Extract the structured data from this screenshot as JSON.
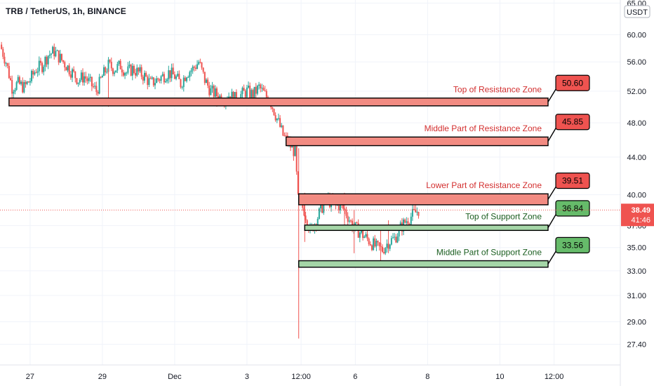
{
  "symbol": {
    "title": "TRB / TetherUS, 1h, BINANCE"
  },
  "price_axis": {
    "currency": "USDT",
    "current_price": "38.49",
    "countdown": "41:46"
  },
  "colors": {
    "resistance_fill": "#f28b82",
    "resistance_label": "#ef5350",
    "resistance_text": "#d32f2f",
    "support_fill": "#a5d6a7",
    "support_label": "#66bb6a",
    "support_text": "#1b5e20",
    "candle_up": "#26a69a",
    "candle_down": "#ef5350",
    "price_line": "#ef5350",
    "grid": "#f0f3fa"
  },
  "chart_data": {
    "type": "candlestick",
    "y_scale": "log",
    "ylim": [
      26.0,
      65.5
    ],
    "xlim": [
      -2,
      101
    ],
    "y_ticks": [
      "65.00",
      "60.00",
      "56.00",
      "52.00",
      "48.00",
      "44.00",
      "40.00",
      "37.00",
      "35.00",
      "33.00",
      "31.00",
      "29.00",
      "27.40"
    ],
    "y_tick_values": [
      65.0,
      60.0,
      56.0,
      52.0,
      48.0,
      44.0,
      40.0,
      37.0,
      35.0,
      33.0,
      31.0,
      29.0,
      27.4
    ],
    "x_ticks": [
      {
        "label": "27",
        "x": 3
      },
      {
        "label": "29",
        "x": 15
      },
      {
        "label": "Dec",
        "x": 27
      },
      {
        "label": "3",
        "x": 39
      },
      {
        "label": "12:00",
        "x": 48
      },
      {
        "label": "6",
        "x": 57
      },
      {
        "label": "8",
        "x": 69
      },
      {
        "label": "10",
        "x": 81
      },
      {
        "label": "12:00",
        "x": 90
      }
    ],
    "price_path": [
      [
        -2,
        58.5
      ],
      [
        -1,
        56.0
      ],
      [
        0,
        52.5
      ],
      [
        1,
        53.0
      ],
      [
        2,
        52.5
      ],
      [
        3,
        53.5
      ],
      [
        4,
        55.0
      ],
      [
        5,
        55.5
      ],
      [
        6,
        57.0
      ],
      [
        7,
        57.5
      ],
      [
        8,
        56.5
      ],
      [
        9,
        55.5
      ],
      [
        10,
        54.5
      ],
      [
        11,
        53.5
      ],
      [
        12,
        54.0
      ],
      [
        13,
        53.0
      ],
      [
        14,
        52.0
      ],
      [
        15,
        54.0
      ],
      [
        16,
        55.5
      ],
      [
        17,
        55.0
      ],
      [
        18,
        55.5
      ],
      [
        19,
        54.5
      ],
      [
        20,
        55.0
      ],
      [
        21,
        54.5
      ],
      [
        22,
        54.0
      ],
      [
        23,
        53.0
      ],
      [
        24,
        53.5
      ],
      [
        25,
        54.0
      ],
      [
        26,
        54.5
      ],
      [
        27,
        54.0
      ],
      [
        28,
        53.0
      ],
      [
        29,
        54.5
      ],
      [
        30,
        55.0
      ],
      [
        31,
        56.0
      ],
      [
        32,
        53.5
      ],
      [
        33,
        52.0
      ],
      [
        34,
        51.5
      ],
      [
        35,
        51.0
      ],
      [
        36,
        51.5
      ],
      [
        37,
        51.0
      ],
      [
        38,
        51.5
      ],
      [
        39,
        52.0
      ],
      [
        40,
        51.5
      ],
      [
        41,
        52.5
      ],
      [
        42,
        51.5
      ],
      [
        43,
        50.5
      ],
      [
        44,
        48.5
      ],
      [
        45,
        46.5
      ],
      [
        46,
        45.5
      ],
      [
        47,
        44.5
      ],
      [
        47.5,
        39.5
      ],
      [
        48.5,
        38.5
      ],
      [
        49.5,
        36.5
      ],
      [
        50.5,
        37.5
      ],
      [
        51.5,
        38.8
      ],
      [
        52.5,
        39.5
      ],
      [
        53.5,
        38.8
      ],
      [
        54.5,
        39.0
      ],
      [
        55.5,
        38.2
      ],
      [
        56.5,
        37.0
      ],
      [
        57.5,
        36.5
      ],
      [
        58.5,
        36.0
      ],
      [
        59.5,
        35.5
      ],
      [
        60.5,
        35.0
      ],
      [
        61.5,
        34.8
      ],
      [
        62.5,
        35.5
      ],
      [
        63.5,
        35.8
      ],
      [
        64.5,
        36.8
      ],
      [
        65.5,
        37.5
      ],
      [
        66.5,
        38.0
      ],
      [
        67.5,
        38.49
      ]
    ],
    "wicks": [
      {
        "x": 47.6,
        "high": 45.0,
        "low": 27.8
      },
      {
        "x": 48.6,
        "high": 40.2,
        "low": 35.5
      },
      {
        "x": 55.2,
        "high": 40.2,
        "low": 37.0
      },
      {
        "x": 56.8,
        "high": 38.5,
        "low": 34.5
      },
      {
        "x": 61.2,
        "high": 36.8,
        "low": 33.4
      },
      {
        "x": 62.5,
        "high": 37.5,
        "low": 34.5
      },
      {
        "x": 34.0,
        "high": 52.5,
        "low": 50.0
      },
      {
        "x": 16.0,
        "high": 55.0,
        "low": 50.0
      }
    ],
    "zones": [
      {
        "label": "Top of Resistance Zone",
        "value": 50.6,
        "value_label": "50.60",
        "kind": "resistance",
        "x_start": -0.5,
        "x_end": 89,
        "band_low": 50.1,
        "band_high": 51.1
      },
      {
        "label": "Middle Part of Resistance Zone",
        "value": 45.85,
        "value_label": "45.85",
        "kind": "resistance",
        "x_start": 45.5,
        "x_end": 89,
        "band_low": 45.3,
        "band_high": 46.3
      },
      {
        "label": "Lower Part of Resistance Zone",
        "value": 39.51,
        "value_label": "39.51",
        "kind": "resistance",
        "x_start": 47.6,
        "x_end": 89,
        "band_low": 39.0,
        "band_high": 40.1
      },
      {
        "label": "Top of Support Zone",
        "value": 36.84,
        "value_label": "36.84",
        "kind": "support",
        "x_start": 48.6,
        "x_end": 89,
        "band_low": 36.55,
        "band_high": 37.05
      },
      {
        "label": "Middle Part of Support Zone",
        "value": 33.56,
        "value_label": "33.56",
        "kind": "support",
        "x_start": 47.6,
        "x_end": 89,
        "band_low": 33.3,
        "band_high": 33.85
      }
    ],
    "current_price": 38.49
  }
}
